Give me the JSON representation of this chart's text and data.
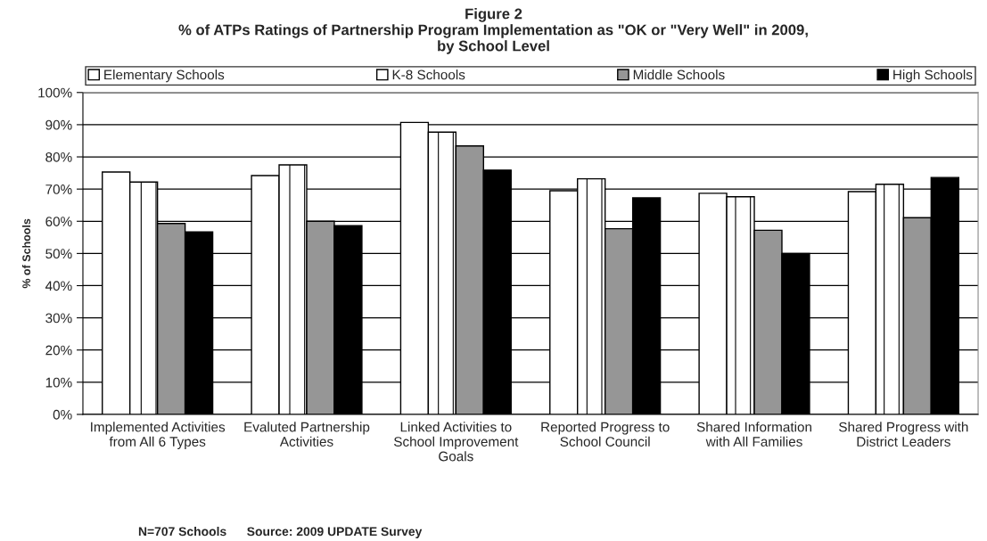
{
  "chart_data": {
    "type": "bar",
    "title": "Figure 2\n% of ATPs Ratings of Partnership Program Implementation as \"OK or \"Very Well\" in 2009,\nby School Level",
    "ylabel": "% of Schools",
    "categories": [
      "Implemented Activities from All 6 Types",
      "Evaluted Partnership Activities",
      "Linked Activities to School Improvement Goals",
      "Reported Progress to School Council",
      "Shared Information with All Families",
      "Shared Progress with District Leaders"
    ],
    "series": [
      {
        "name": "Elementary Schools",
        "color": "#ffffff",
        "values": [
          75.3,
          74.2,
          90.7,
          69.5,
          68.7,
          69.2
        ]
      },
      {
        "name": "K-8 Schools",
        "color": "#ffffff",
        "values": [
          72.2,
          77.5,
          87.7,
          73.2,
          67.6,
          71.5
        ]
      },
      {
        "name": "Middle Schools",
        "color": "#969696",
        "values": [
          59.3,
          60.0,
          83.4,
          57.7,
          57.2,
          61.1
        ]
      },
      {
        "name": "High Schools",
        "color": "#000000",
        "values": [
          56.7,
          58.6,
          75.9,
          67.3,
          50.0,
          73.6
        ]
      }
    ],
    "ylim": [
      0,
      100
    ],
    "yticks": [
      {
        "value": 0,
        "label": "0%"
      },
      {
        "value": 10,
        "label": "10%"
      },
      {
        "value": 20,
        "label": "20%"
      },
      {
        "value": 30,
        "label": "30%"
      },
      {
        "value": 40,
        "label": "40%"
      },
      {
        "value": 50,
        "label": "50%"
      },
      {
        "value": 60,
        "label": "60%"
      },
      {
        "value": 70,
        "label": "70%"
      },
      {
        "value": 80,
        "label": "80%"
      },
      {
        "value": 90,
        "label": "90%"
      },
      {
        "value": 100,
        "label": "100%"
      }
    ],
    "grid": "y",
    "legend": "top",
    "annotations": [
      "N=707 Schools",
      "Source: 2009 UPDATE Survey"
    ]
  }
}
